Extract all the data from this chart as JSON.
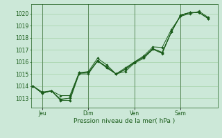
{
  "background_color": "#cce8d8",
  "grid_color": "#99cc99",
  "line_color": "#1a5c1a",
  "marker_color": "#1a5c1a",
  "xlabel": "Pression niveau de la mer( hPa )",
  "ylim": [
    1012.2,
    1020.8
  ],
  "yticks": [
    1013,
    1014,
    1015,
    1016,
    1017,
    1018,
    1019,
    1020
  ],
  "day_labels": [
    "Jeu",
    "Dim",
    "Ven",
    "Sam"
  ],
  "day_positions": [
    0.5,
    3.0,
    5.5,
    8.0
  ],
  "xlim": [
    -0.1,
    10.0
  ],
  "series1_x": [
    0.0,
    0.5,
    1.0,
    1.5,
    2.0,
    2.5,
    3.0,
    3.5,
    4.0,
    4.5,
    5.0,
    5.5,
    6.0,
    6.5,
    7.0,
    7.5,
    8.0,
    8.5,
    9.0,
    9.5
  ],
  "series1_y": [
    1014.0,
    1013.5,
    1013.6,
    1013.2,
    1013.2,
    1015.1,
    1015.2,
    1016.3,
    1015.75,
    1015.0,
    1015.5,
    1016.0,
    1016.5,
    1017.25,
    1017.2,
    1018.7,
    1019.8,
    1020.0,
    1020.2,
    1019.7
  ],
  "series2_x": [
    0.0,
    0.5,
    1.0,
    1.5,
    2.0,
    2.5,
    3.0,
    3.5,
    4.0,
    4.5,
    5.0,
    5.5,
    6.0,
    6.5,
    7.0,
    7.5,
    8.0,
    8.5,
    9.0,
    9.5
  ],
  "series2_y": [
    1014.0,
    1013.4,
    1013.6,
    1012.8,
    1012.8,
    1015.0,
    1015.0,
    1016.1,
    1015.5,
    1015.0,
    1015.2,
    1015.9,
    1016.3,
    1017.05,
    1016.7,
    1018.5,
    1019.9,
    1020.1,
    1020.1,
    1019.6
  ],
  "series3_x": [
    0.0,
    0.5,
    1.0,
    1.5,
    2.0,
    2.5,
    3.0,
    3.5,
    4.0,
    4.5,
    5.0,
    5.5,
    6.0,
    6.5,
    7.0,
    7.5,
    8.0,
    8.5,
    9.0,
    9.5
  ],
  "series3_y": [
    1014.0,
    1013.4,
    1013.6,
    1012.85,
    1013.0,
    1015.05,
    1015.1,
    1016.05,
    1015.55,
    1015.0,
    1015.35,
    1015.95,
    1016.4,
    1017.1,
    1016.75,
    1018.5,
    1019.85,
    1020.1,
    1020.1,
    1019.6
  ],
  "series4_x": [
    0.0,
    0.5,
    1.0,
    1.5,
    2.0,
    2.5,
    3.0,
    3.5,
    4.0,
    4.5,
    5.0,
    5.5,
    6.0,
    6.5,
    7.0,
    7.5,
    8.0,
    8.5,
    9.0,
    9.5
  ],
  "series4_y": [
    1014.0,
    1013.4,
    1013.6,
    1012.9,
    1013.0,
    1015.1,
    1015.1,
    1016.1,
    1015.6,
    1015.0,
    1015.4,
    1016.0,
    1016.4,
    1017.1,
    1016.8,
    1018.5,
    1019.9,
    1020.1,
    1020.1,
    1019.6
  ],
  "vline_positions": [
    0.5,
    3.0,
    5.5,
    8.0
  ],
  "vline_color": "#5a8a5a",
  "figsize": [
    3.2,
    2.0
  ],
  "dpi": 100
}
